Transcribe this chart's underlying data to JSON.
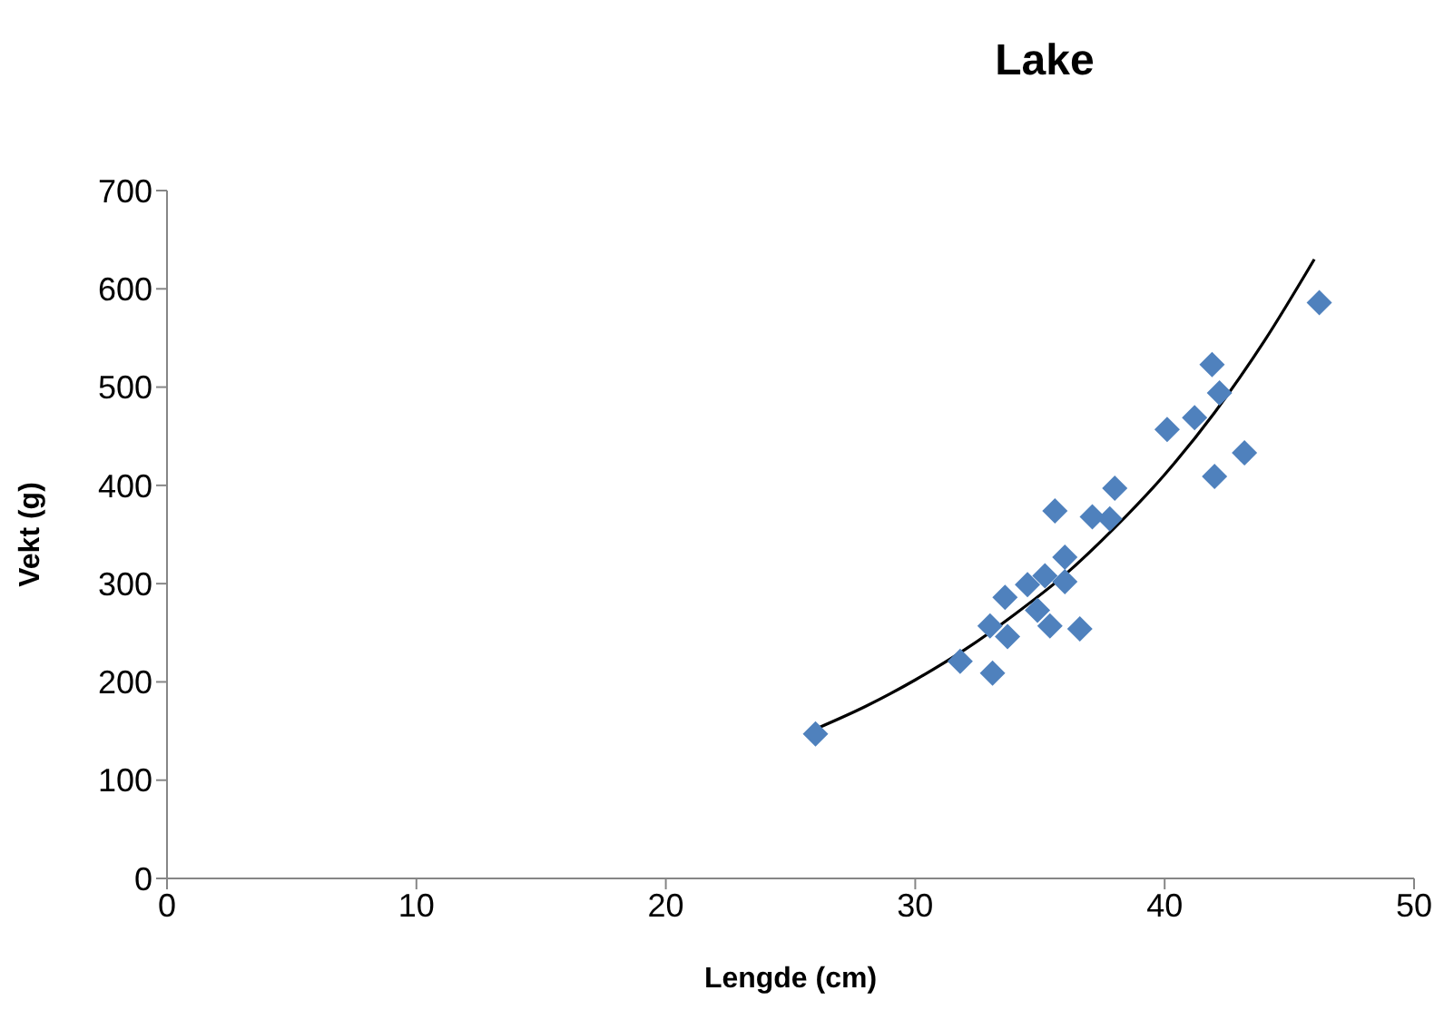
{
  "chart_data": {
    "type": "scatter",
    "title": "Lake",
    "xlabel": "Lengde (cm)",
    "ylabel": "Vekt (g)",
    "xlim": [
      0,
      50
    ],
    "xticks": [
      0,
      10,
      20,
      30,
      40,
      50
    ],
    "ylim": [
      0,
      700
    ],
    "yticks": [
      0,
      100,
      200,
      300,
      400,
      500,
      600,
      700
    ],
    "grid": false,
    "legend": false,
    "marker": "diamond",
    "series": [
      {
        "type": "scatter",
        "color": "#4f81bd",
        "x": [
          26,
          31.8,
          33.1,
          33.6,
          33,
          33.7,
          35.2,
          34.9,
          35.4,
          36,
          36,
          36.6,
          35.6,
          37.1,
          37.8,
          38,
          40.1,
          41.2,
          41.9,
          42.2,
          42,
          43.2,
          46.2,
          34.5
        ],
        "values": [
          147,
          221,
          209,
          286,
          257,
          246,
          308,
          273,
          257,
          327,
          302,
          254,
          374,
          368,
          366,
          397,
          457,
          469,
          523,
          494,
          409,
          433,
          586,
          299
        ]
      },
      {
        "type": "line",
        "color": "#000000",
        "marker": "none",
        "x": [
          26,
          28,
          30,
          32,
          34,
          36,
          38,
          40,
          42,
          44,
          46
        ],
        "values": [
          152,
          175,
          202,
          233,
          269,
          309,
          357,
          411,
          474,
          547,
          630
        ]
      }
    ]
  }
}
